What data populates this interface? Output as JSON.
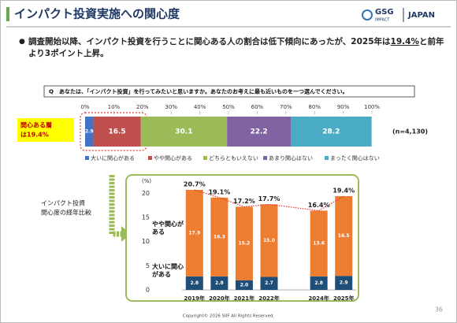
{
  "header": {
    "title": "インパクト投資実施への関心度",
    "logo_main": "GSG",
    "logo_sub": "IMPACT",
    "logo_country": "JAPAN"
  },
  "summary": [
    "調査開始以降、インパクト投資を行うことに関心ある人の割合は低下傾向にあったが、2025年は",
    "19.4%",
    "と前年より3ポイント上昇。"
  ],
  "question": "Q　あなたは、「インパクト投資」を行ってみたいと思いますか。あなたのお考えに最も近いものを一つ選んでください。",
  "callout": [
    "関心ある層",
    "は19.4%"
  ],
  "side_label": [
    "インパクト投資",
    "関心度の経年比較"
  ],
  "chart_data": [
    {
      "type": "bar",
      "orientation": "horizontal",
      "stacked": true,
      "xlim": [
        0,
        100
      ],
      "xticks": [
        {
          "value": 0,
          "label": "0%"
        },
        {
          "value": 10,
          "label": "10%"
        },
        {
          "value": 20,
          "label": "20%"
        },
        {
          "value": 30,
          "label": "30%"
        },
        {
          "value": 40,
          "label": "40%"
        },
        {
          "value": 50,
          "label": "50%"
        },
        {
          "value": 60,
          "label": "60%"
        },
        {
          "value": 70,
          "label": "70%"
        },
        {
          "value": 80,
          "label": "80%"
        },
        {
          "value": 90,
          "label": "90%"
        },
        {
          "value": 100,
          "label": "100%"
        }
      ],
      "note": "(n=4,130)",
      "legend": "bottom",
      "series": [
        {
          "name": "大いに関心がある",
          "color": "#4472c4",
          "values": [
            2.9
          ]
        },
        {
          "name": "やや関心がある",
          "color": "#c0504d",
          "values": [
            16.5
          ]
        },
        {
          "name": "どちらともいえない",
          "color": "#9bbb59",
          "values": [
            30.1
          ]
        },
        {
          "name": "あまり関心はない",
          "color": "#8064a2",
          "values": [
            22.2
          ]
        },
        {
          "name": "まったく関心はない",
          "color": "#4bacc6",
          "values": [
            28.2
          ]
        }
      ]
    },
    {
      "type": "bar",
      "stacked": true,
      "x": [
        2019,
        2020,
        2021,
        2022,
        2024,
        2025
      ],
      "xlim": [
        2018.5,
        2025.5
      ],
      "xticks": [
        {
          "value": 2019,
          "label": "2019年"
        },
        {
          "value": 2020,
          "label": "2020年"
        },
        {
          "value": 2021,
          "label": "2021年"
        },
        {
          "value": 2022,
          "label": "2022年"
        },
        {
          "value": 2024,
          "label": "2024年"
        },
        {
          "value": 2025,
          "label": "2025年"
        }
      ],
      "ylabel": "(%)",
      "ylim": [
        0,
        22
      ],
      "yticks": [
        0,
        5,
        10,
        15,
        20
      ],
      "series": [
        {
          "name": "大いに関心がある",
          "color": "#1f4e79",
          "values": [
            2.8,
            2.8,
            2.0,
            2.7,
            2.8,
            2.9
          ],
          "value_labels": [
            "2.8",
            "2.8",
            "2.0",
            "2.7",
            "2.8",
            "2.9"
          ]
        },
        {
          "name": "やや関心がある",
          "color": "#ed7d31",
          "values": [
            17.9,
            16.3,
            15.2,
            15.0,
            13.6,
            16.5
          ],
          "value_labels": [
            "17.9",
            "16.3",
            "15.2",
            "15.0",
            "13.6",
            "16.5"
          ]
        }
      ],
      "totals": [
        20.7,
        19.1,
        17.2,
        17.7,
        16.4,
        19.4
      ],
      "total_labels": [
        "20.7%",
        "19.1%",
        "17.2%",
        "17.7%",
        "16.4%",
        "19.4%"
      ],
      "line_color": "#e03c31"
    }
  ],
  "footer": {
    "copyright": "Copyright© 2026 SIIF All Rights Reserved.",
    "page": 36
  }
}
